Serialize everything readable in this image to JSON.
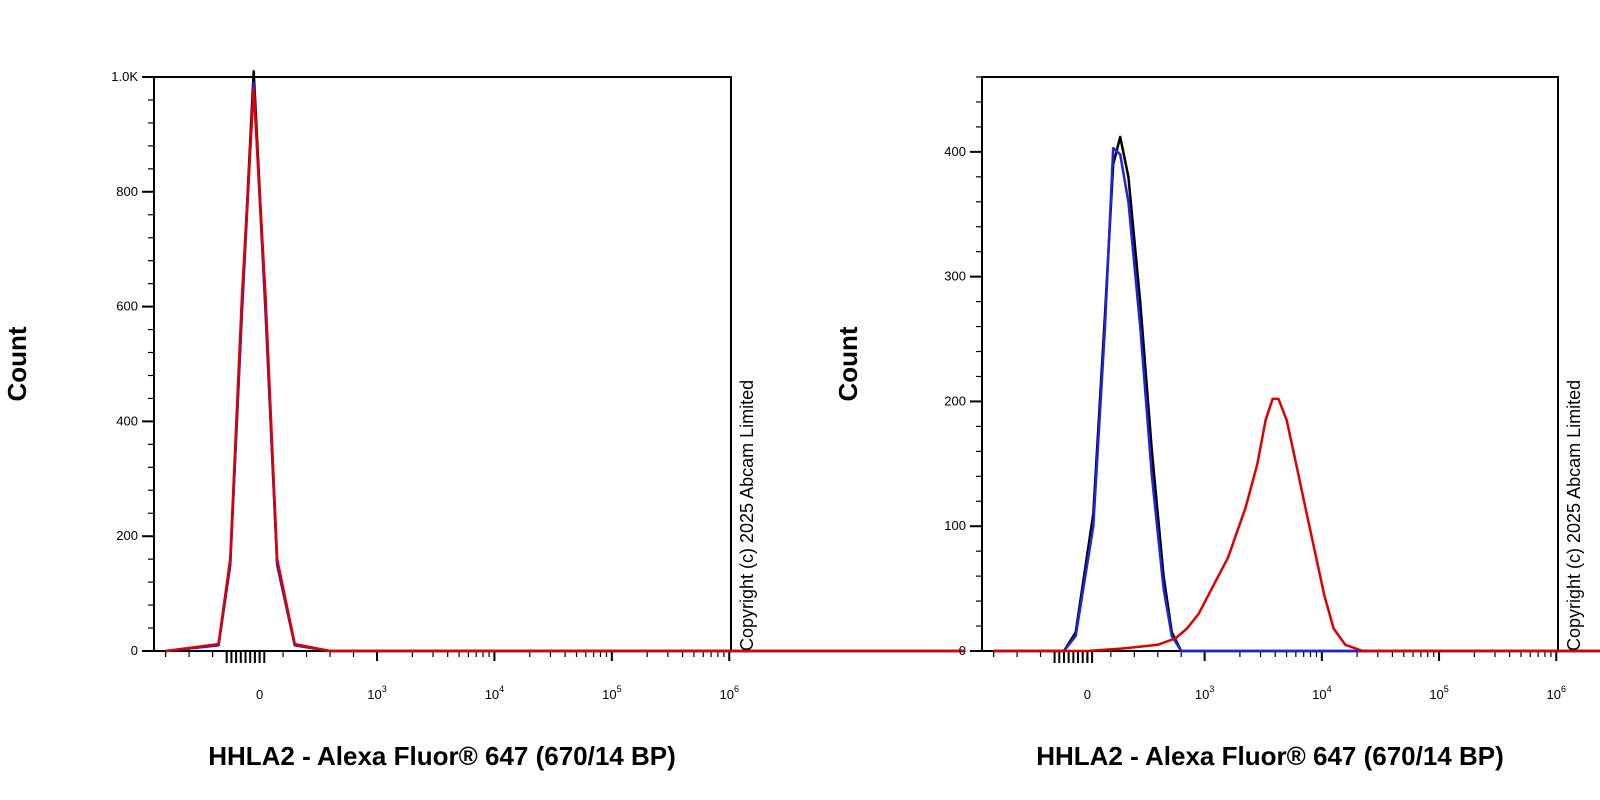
{
  "chart_data": [
    {
      "type": "line",
      "xlabel": "HHLA2 - Alexa Fluor® 647 (670/14 BP)",
      "ylabel": "Count",
      "x_scale": "biexponential",
      "ylim": [
        0,
        1000
      ],
      "y_ticks": [
        {
          "v": 0,
          "label": "0"
        },
        {
          "v": 200,
          "label": "200"
        },
        {
          "v": 400,
          "label": "400"
        },
        {
          "v": 600,
          "label": "600"
        },
        {
          "v": 800,
          "label": "800"
        },
        {
          "v": 1000,
          "label": "1.0K"
        }
      ],
      "x_ticks": [
        {
          "label": "0",
          "base": "",
          "exp": ""
        },
        {
          "label": "10",
          "base": "10",
          "exp": "3"
        },
        {
          "label": "10",
          "base": "10",
          "exp": "4"
        },
        {
          "label": "10",
          "base": "10",
          "exp": "5"
        },
        {
          "label": "10",
          "base": "10",
          "exp": "6"
        }
      ],
      "annotation": "Copyright (c) 2025 Abcam Limited",
      "series": [
        {
          "color": "#000000",
          "points": [
            [
              -0.8,
              0
            ],
            [
              -0.35,
              10
            ],
            [
              -0.25,
              150
            ],
            [
              -0.15,
              600
            ],
            [
              -0.05,
              1010
            ],
            [
              0.05,
              600
            ],
            [
              0.15,
              150
            ],
            [
              0.3,
              10
            ],
            [
              0.6,
              0
            ],
            [
              6,
              0
            ]
          ]
        },
        {
          "color": "#2222dd",
          "points": [
            [
              -0.8,
              0
            ],
            [
              -0.35,
              10
            ],
            [
              -0.25,
              150
            ],
            [
              -0.15,
              590
            ],
            [
              -0.05,
              990
            ],
            [
              0.05,
              590
            ],
            [
              0.15,
              150
            ],
            [
              0.3,
              10
            ],
            [
              0.6,
              0
            ],
            [
              6,
              0
            ]
          ]
        },
        {
          "color": "#e00000",
          "points": [
            [
              -0.8,
              0
            ],
            [
              -0.35,
              12
            ],
            [
              -0.25,
              160
            ],
            [
              -0.15,
              620
            ],
            [
              -0.05,
              980
            ],
            [
              0.05,
              620
            ],
            [
              0.15,
              160
            ],
            [
              0.3,
              12
            ],
            [
              0.6,
              0
            ],
            [
              6,
              0
            ]
          ]
        }
      ]
    },
    {
      "type": "line",
      "xlabel": "HHLA2 - Alexa Fluor® 647 (670/14 BP)",
      "ylabel": "Count",
      "x_scale": "biexponential",
      "ylim": [
        0,
        460
      ],
      "y_ticks": [
        {
          "v": 0,
          "label": "0"
        },
        {
          "v": 100,
          "label": "100"
        },
        {
          "v": 200,
          "label": "200"
        },
        {
          "v": 300,
          "label": "300"
        },
        {
          "v": 400,
          "label": "400"
        }
      ],
      "x_ticks": [
        {
          "label": "0",
          "base": "",
          "exp": ""
        },
        {
          "label": "10",
          "base": "10",
          "exp": "3"
        },
        {
          "label": "10",
          "base": "10",
          "exp": "4"
        },
        {
          "label": "10",
          "base": "10",
          "exp": "5"
        },
        {
          "label": "10",
          "base": "10",
          "exp": "6"
        }
      ],
      "annotation": "Copyright (c) 2025 Abcam Limited",
      "series": [
        {
          "color": "#000000",
          "points": [
            [
              -0.8,
              0
            ],
            [
              -0.2,
              0
            ],
            [
              -0.1,
              15
            ],
            [
              0.05,
              110
            ],
            [
              0.15,
              270
            ],
            [
              0.22,
              390
            ],
            [
              0.28,
              412
            ],
            [
              0.35,
              380
            ],
            [
              0.45,
              280
            ],
            [
              0.55,
              160
            ],
            [
              0.65,
              60
            ],
            [
              0.72,
              15
            ],
            [
              0.8,
              0
            ],
            [
              6,
              0
            ]
          ]
        },
        {
          "color": "#2222dd",
          "points": [
            [
              -0.8,
              0
            ],
            [
              -0.2,
              0
            ],
            [
              -0.1,
              12
            ],
            [
              0.05,
              100
            ],
            [
              0.15,
              260
            ],
            [
              0.22,
              403
            ],
            [
              0.28,
              398
            ],
            [
              0.35,
              360
            ],
            [
              0.45,
              260
            ],
            [
              0.55,
              140
            ],
            [
              0.65,
              50
            ],
            [
              0.72,
              12
            ],
            [
              0.8,
              0
            ],
            [
              6,
              0
            ]
          ]
        },
        {
          "color": "#e00000",
          "points": [
            [
              -0.8,
              0
            ],
            [
              0.0,
              0
            ],
            [
              0.3,
              2
            ],
            [
              0.6,
              5
            ],
            [
              0.75,
              10
            ],
            [
              0.85,
              18
            ],
            [
              0.95,
              30
            ],
            [
              1.05,
              48
            ],
            [
              1.2,
              75
            ],
            [
              1.35,
              115
            ],
            [
              1.45,
              150
            ],
            [
              1.52,
              185
            ],
            [
              1.58,
              202
            ],
            [
              1.63,
              202
            ],
            [
              1.7,
              185
            ],
            [
              1.78,
              150
            ],
            [
              1.86,
              115
            ],
            [
              1.94,
              80
            ],
            [
              2.02,
              45
            ],
            [
              2.1,
              18
            ],
            [
              2.2,
              5
            ],
            [
              2.35,
              0
            ],
            [
              6,
              0
            ]
          ]
        }
      ]
    }
  ]
}
